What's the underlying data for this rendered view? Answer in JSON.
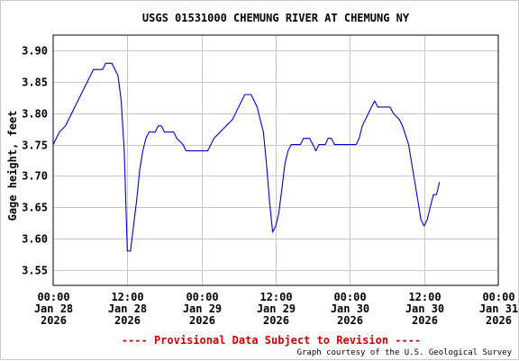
{
  "chart_data": {
    "type": "line",
    "title": "USGS 01531000 CHEMUNG RIVER AT CHEMUNG NY",
    "ylabel": "Gage height, feet",
    "xlabel": "",
    "ylim": [
      3.525,
      3.925
    ],
    "xlim": [
      "2026-01-28 00:00",
      "2026-01-31 00:00"
    ],
    "yticks": [
      "3.55",
      "3.60",
      "3.65",
      "3.70",
      "3.75",
      "3.80",
      "3.85",
      "3.90"
    ],
    "xticks": [
      {
        "time": "2026-01-28 00:00",
        "label": [
          "00:00",
          "Jan 28",
          "2026"
        ]
      },
      {
        "time": "2026-01-28 12:00",
        "label": [
          "12:00",
          "Jan 28",
          "2026"
        ]
      },
      {
        "time": "2026-01-29 00:00",
        "label": [
          "00:00",
          "Jan 29",
          "2026"
        ]
      },
      {
        "time": "2026-01-29 12:00",
        "label": [
          "12:00",
          "Jan 29",
          "2026"
        ]
      },
      {
        "time": "2026-01-30 00:00",
        "label": [
          "00:00",
          "Jan 30",
          "2026"
        ]
      },
      {
        "time": "2026-01-30 12:00",
        "label": [
          "12:00",
          "Jan 30",
          "2026"
        ]
      },
      {
        "time": "2026-01-31 00:00",
        "label": [
          "00:00",
          "Jan 31",
          "2026"
        ]
      }
    ],
    "grid": true,
    "legend": "none",
    "series": [
      {
        "color": "#0000cc",
        "points": [
          [
            "2026-01-28 00:00",
            3.75
          ],
          [
            "2026-01-28 00:30",
            3.76
          ],
          [
            "2026-01-28 01:00",
            3.77
          ],
          [
            "2026-01-28 02:00",
            3.78
          ],
          [
            "2026-01-28 03:00",
            3.8
          ],
          [
            "2026-01-28 04:00",
            3.82
          ],
          [
            "2026-01-28 05:00",
            3.84
          ],
          [
            "2026-01-28 06:00",
            3.86
          ],
          [
            "2026-01-28 06:30",
            3.87
          ],
          [
            "2026-01-28 08:00",
            3.87
          ],
          [
            "2026-01-28 08:30",
            3.88
          ],
          [
            "2026-01-28 09:30",
            3.88
          ],
          [
            "2026-01-28 10:00",
            3.87
          ],
          [
            "2026-01-28 10:30",
            3.86
          ],
          [
            "2026-01-28 11:00",
            3.82
          ],
          [
            "2026-01-28 11:30",
            3.74
          ],
          [
            "2026-01-28 11:45",
            3.66
          ],
          [
            "2026-01-28 12:00",
            3.58
          ],
          [
            "2026-01-28 12:30",
            3.58
          ],
          [
            "2026-01-28 13:00",
            3.62
          ],
          [
            "2026-01-28 13:30",
            3.66
          ],
          [
            "2026-01-28 14:00",
            3.71
          ],
          [
            "2026-01-28 14:30",
            3.74
          ],
          [
            "2026-01-28 15:00",
            3.76
          ],
          [
            "2026-01-28 15:30",
            3.77
          ],
          [
            "2026-01-28 16:30",
            3.77
          ],
          [
            "2026-01-28 17:00",
            3.78
          ],
          [
            "2026-01-28 17:30",
            3.78
          ],
          [
            "2026-01-28 18:00",
            3.77
          ],
          [
            "2026-01-28 19:30",
            3.77
          ],
          [
            "2026-01-28 20:00",
            3.76
          ],
          [
            "2026-01-28 21:00",
            3.75
          ],
          [
            "2026-01-28 21:30",
            3.74
          ],
          [
            "2026-01-29 01:00",
            3.74
          ],
          [
            "2026-01-29 01:30",
            3.75
          ],
          [
            "2026-01-29 02:00",
            3.76
          ],
          [
            "2026-01-29 03:00",
            3.77
          ],
          [
            "2026-01-29 04:00",
            3.78
          ],
          [
            "2026-01-29 05:00",
            3.79
          ],
          [
            "2026-01-29 06:00",
            3.81
          ],
          [
            "2026-01-29 07:00",
            3.83
          ],
          [
            "2026-01-29 08:00",
            3.83
          ],
          [
            "2026-01-29 08:30",
            3.82
          ],
          [
            "2026-01-29 09:00",
            3.81
          ],
          [
            "2026-01-29 09:30",
            3.79
          ],
          [
            "2026-01-29 10:00",
            3.77
          ],
          [
            "2026-01-29 10:30",
            3.72
          ],
          [
            "2026-01-29 11:00",
            3.66
          ],
          [
            "2026-01-29 11:30",
            3.61
          ],
          [
            "2026-01-29 12:00",
            3.62
          ],
          [
            "2026-01-29 12:30",
            3.64
          ],
          [
            "2026-01-29 13:00",
            3.68
          ],
          [
            "2026-01-29 13:30",
            3.72
          ],
          [
            "2026-01-29 14:00",
            3.74
          ],
          [
            "2026-01-29 14:30",
            3.75
          ],
          [
            "2026-01-29 16:00",
            3.75
          ],
          [
            "2026-01-29 16:30",
            3.76
          ],
          [
            "2026-01-29 17:30",
            3.76
          ],
          [
            "2026-01-29 18:00",
            3.75
          ],
          [
            "2026-01-29 18:30",
            3.74
          ],
          [
            "2026-01-29 19:00",
            3.75
          ],
          [
            "2026-01-29 20:00",
            3.75
          ],
          [
            "2026-01-29 20:30",
            3.76
          ],
          [
            "2026-01-29 21:00",
            3.76
          ],
          [
            "2026-01-29 21:30",
            3.75
          ],
          [
            "2026-01-30 01:00",
            3.75
          ],
          [
            "2026-01-30 01:30",
            3.76
          ],
          [
            "2026-01-30 02:00",
            3.78
          ],
          [
            "2026-01-30 03:00",
            3.8
          ],
          [
            "2026-01-30 03:30",
            3.81
          ],
          [
            "2026-01-30 04:00",
            3.82
          ],
          [
            "2026-01-30 04:30",
            3.81
          ],
          [
            "2026-01-30 06:30",
            3.81
          ],
          [
            "2026-01-30 07:00",
            3.8
          ],
          [
            "2026-01-30 08:00",
            3.79
          ],
          [
            "2026-01-30 08:30",
            3.78
          ],
          [
            "2026-01-30 09:30",
            3.75
          ],
          [
            "2026-01-30 10:00",
            3.72
          ],
          [
            "2026-01-30 10:30",
            3.69
          ],
          [
            "2026-01-30 11:00",
            3.66
          ],
          [
            "2026-01-30 11:30",
            3.63
          ],
          [
            "2026-01-30 12:00",
            3.62
          ],
          [
            "2026-01-30 12:30",
            3.63
          ],
          [
            "2026-01-30 13:00",
            3.65
          ],
          [
            "2026-01-30 13:30",
            3.67
          ],
          [
            "2026-01-30 14:00",
            3.67
          ],
          [
            "2026-01-30 14:30",
            3.69
          ]
        ]
      }
    ]
  },
  "footer": {
    "notice": "---- Provisional Data Subject to Revision ----",
    "notice_color": "#cc0000",
    "credit": "Graph courtesy of the U.S. Geological Survey"
  },
  "colors": {
    "grid": "#c8c8c8",
    "axis": "#000000"
  }
}
